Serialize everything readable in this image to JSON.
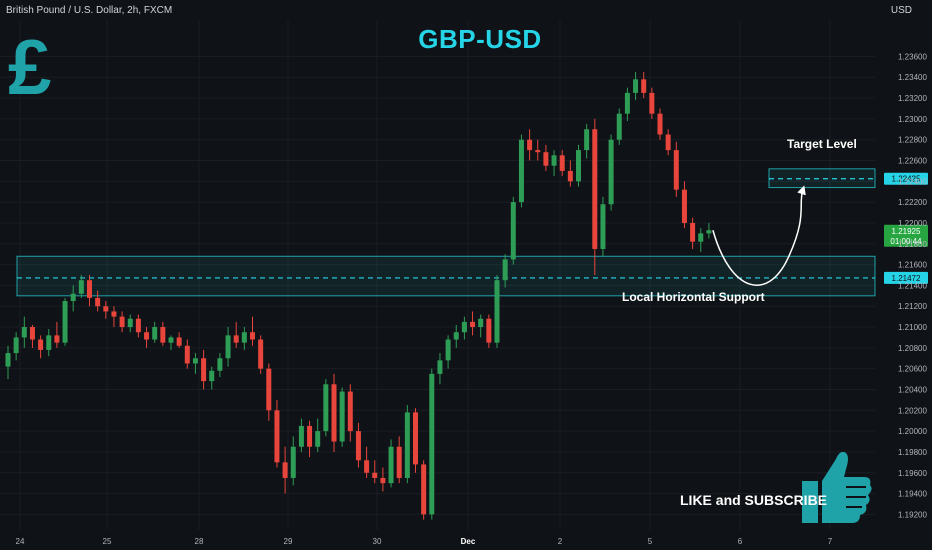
{
  "header": {
    "symbol": "British Pound / U.S. Dollar, 2h, FXCM",
    "currency": "USD"
  },
  "title": "GBP-USD",
  "logo_icon": "pound-sign-icon",
  "cta_label": "LIKE and SUBSCRIBE",
  "cta_icon": "thumbs-up-icon",
  "annotations": {
    "target": "Target Level",
    "support": "Local Horizontal Support"
  },
  "colors": {
    "bull": "#2e9e57",
    "bear": "#e8453c",
    "accent": "#26d4e8",
    "zone": "#1fa3a8",
    "price_tag": "#26a541",
    "background": "#0f1216"
  },
  "chart_data": {
    "type": "candlestick",
    "symbol": "British Pound / U.S. Dollar",
    "timeframe": "2h",
    "exchange": "FXCM",
    "ylim": [
      1.1905,
      1.2395
    ],
    "y_ticks": [
      "1.23600",
      "1.23400",
      "1.23200",
      "1.23000",
      "1.22800",
      "1.22600",
      "1.22400",
      "1.22200",
      "1.22000",
      "1.21800",
      "1.21600",
      "1.21400",
      "1.21200",
      "1.21000",
      "1.20800",
      "1.20600",
      "1.20400",
      "1.20200",
      "1.20000",
      "1.19800",
      "1.19600",
      "1.19400",
      "1.19200"
    ],
    "x_ticks": [
      "24",
      "25",
      "28",
      "29",
      "30",
      "Dec",
      "2",
      "5",
      "6",
      "7"
    ],
    "last_price": "1.21925",
    "countdown": "01:00:44",
    "target_level": "1.22425",
    "support_level": "1.21472",
    "target_zone": [
      1.2234,
      1.2252
    ],
    "support_zone": [
      1.213,
      1.2168
    ],
    "candles": [
      [
        1.2062,
        1.2082,
        1.205,
        1.2075
      ],
      [
        1.2075,
        1.2095,
        1.2068,
        1.209
      ],
      [
        1.209,
        1.211,
        1.208,
        1.21
      ],
      [
        1.21,
        1.2102,
        1.208,
        1.2088
      ],
      [
        1.2088,
        1.2092,
        1.207,
        1.2078
      ],
      [
        1.2078,
        1.2098,
        1.2072,
        1.2092
      ],
      [
        1.2092,
        1.2105,
        1.208,
        1.2085
      ],
      [
        1.2085,
        1.2128,
        1.2082,
        1.2125
      ],
      [
        1.2125,
        1.214,
        1.2115,
        1.2132
      ],
      [
        1.2132,
        1.215,
        1.2128,
        1.2145
      ],
      [
        1.2145,
        1.215,
        1.212,
        1.2128
      ],
      [
        1.2128,
        1.2135,
        1.2115,
        1.212
      ],
      [
        1.212,
        1.2125,
        1.2108,
        1.2115
      ],
      [
        1.2115,
        1.212,
        1.21,
        1.211
      ],
      [
        1.211,
        1.2115,
        1.2095,
        1.21
      ],
      [
        1.21,
        1.2112,
        1.2095,
        1.2108
      ],
      [
        1.2108,
        1.2112,
        1.209,
        1.2095
      ],
      [
        1.2095,
        1.21,
        1.208,
        1.2088
      ],
      [
        1.2088,
        1.2105,
        1.2085,
        1.21
      ],
      [
        1.21,
        1.2105,
        1.2082,
        1.2085
      ],
      [
        1.2085,
        1.2092,
        1.2078,
        1.209
      ],
      [
        1.209,
        1.2095,
        1.208,
        1.2082
      ],
      [
        1.2082,
        1.2088,
        1.206,
        1.2065
      ],
      [
        1.2065,
        1.2075,
        1.2055,
        1.207
      ],
      [
        1.207,
        1.2078,
        1.204,
        1.2048
      ],
      [
        1.2048,
        1.2062,
        1.204,
        1.2058
      ],
      [
        1.2058,
        1.2075,
        1.2052,
        1.207
      ],
      [
        1.207,
        1.21,
        1.2062,
        1.2092
      ],
      [
        1.2092,
        1.2105,
        1.208,
        1.2085
      ],
      [
        1.2085,
        1.21,
        1.2078,
        1.2095
      ],
      [
        1.2095,
        1.211,
        1.2082,
        1.2088
      ],
      [
        1.2088,
        1.2092,
        1.2055,
        1.206
      ],
      [
        1.206,
        1.2065,
        1.201,
        1.202
      ],
      [
        1.202,
        1.203,
        1.1965,
        1.197
      ],
      [
        1.197,
        1.1985,
        1.194,
        1.1955
      ],
      [
        1.1955,
        1.1995,
        1.1948,
        1.1985
      ],
      [
        1.1985,
        1.2012,
        1.198,
        1.2005
      ],
      [
        1.2005,
        1.201,
        1.1975,
        1.1985
      ],
      [
        1.1985,
        1.2012,
        1.198,
        1.2
      ],
      [
        1.2,
        1.205,
        1.1995,
        1.2045
      ],
      [
        1.2045,
        1.2055,
        1.198,
        1.199
      ],
      [
        1.199,
        1.2042,
        1.1985,
        1.2038
      ],
      [
        1.2038,
        1.2045,
        1.199,
        1.2
      ],
      [
        1.2,
        1.2008,
        1.1965,
        1.1972
      ],
      [
        1.1972,
        1.1985,
        1.1955,
        1.196
      ],
      [
        1.196,
        1.1972,
        1.195,
        1.1955
      ],
      [
        1.1955,
        1.1965,
        1.1942,
        1.195
      ],
      [
        1.195,
        1.1992,
        1.1946,
        1.1985
      ],
      [
        1.1985,
        1.1995,
        1.195,
        1.1955
      ],
      [
        1.1955,
        1.2025,
        1.195,
        1.2018
      ],
      [
        1.2018,
        1.2022,
        1.196,
        1.1968
      ],
      [
        1.1968,
        1.1972,
        1.1915,
        1.192
      ],
      [
        1.192,
        1.206,
        1.1915,
        1.2055
      ],
      [
        1.2055,
        1.2075,
        1.2045,
        1.2068
      ],
      [
        1.2068,
        1.2092,
        1.206,
        1.2088
      ],
      [
        1.2088,
        1.2102,
        1.208,
        1.2095
      ],
      [
        1.2095,
        1.211,
        1.2088,
        1.2105
      ],
      [
        1.2105,
        1.2115,
        1.2092,
        1.21
      ],
      [
        1.21,
        1.2112,
        1.209,
        1.2108
      ],
      [
        1.2108,
        1.2112,
        1.208,
        1.2085
      ],
      [
        1.2085,
        1.215,
        1.208,
        1.2145
      ],
      [
        1.2145,
        1.217,
        1.2138,
        1.2165
      ],
      [
        1.2165,
        1.2225,
        1.216,
        1.222
      ],
      [
        1.222,
        1.2285,
        1.2215,
        1.228
      ],
      [
        1.228,
        1.229,
        1.226,
        1.227
      ],
      [
        1.227,
        1.228,
        1.226,
        1.2268
      ],
      [
        1.2268,
        1.2275,
        1.225,
        1.2255
      ],
      [
        1.2255,
        1.227,
        1.2245,
        1.2265
      ],
      [
        1.2265,
        1.227,
        1.2245,
        1.225
      ],
      [
        1.225,
        1.226,
        1.2235,
        1.224
      ],
      [
        1.224,
        1.2275,
        1.2235,
        1.227
      ],
      [
        1.227,
        1.2295,
        1.2262,
        1.229
      ],
      [
        1.229,
        1.23,
        1.215,
        1.2175
      ],
      [
        1.2175,
        1.2225,
        1.2168,
        1.2218
      ],
      [
        1.2218,
        1.2285,
        1.2212,
        1.228
      ],
      [
        1.228,
        1.231,
        1.2275,
        1.2305
      ],
      [
        1.2305,
        1.233,
        1.2298,
        1.2325
      ],
      [
        1.2325,
        1.2345,
        1.2318,
        1.2338
      ],
      [
        1.2338,
        1.2345,
        1.232,
        1.2325
      ],
      [
        1.2325,
        1.233,
        1.23,
        1.2305
      ],
      [
        1.2305,
        1.231,
        1.228,
        1.2285
      ],
      [
        1.2285,
        1.229,
        1.2265,
        1.227
      ],
      [
        1.227,
        1.2278,
        1.2225,
        1.2232
      ],
      [
        1.2232,
        1.224,
        1.2195,
        1.22
      ],
      [
        1.22,
        1.2205,
        1.2175,
        1.2182
      ],
      [
        1.2182,
        1.2195,
        1.2172,
        1.219
      ],
      [
        1.219,
        1.22,
        1.2185,
        1.2193
      ]
    ]
  }
}
